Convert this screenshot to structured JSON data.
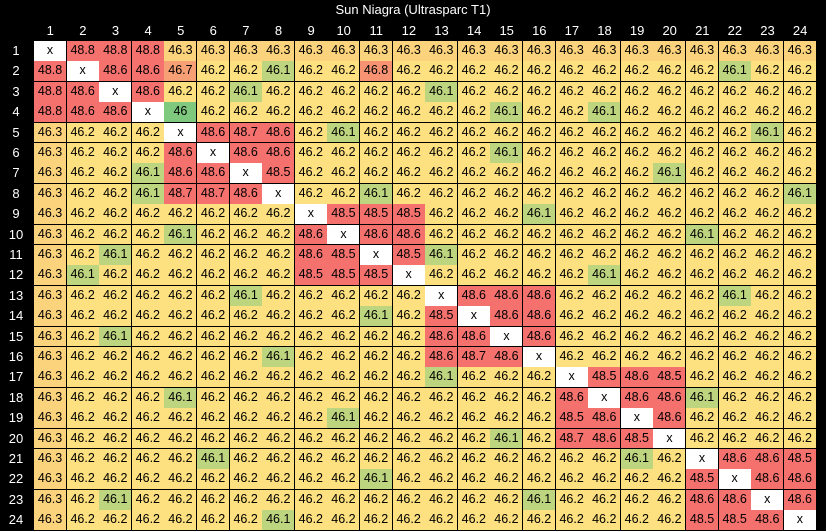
{
  "chart_data": {
    "type": "heatmap",
    "title": "Sun Niagra (Ultrasparc T1)",
    "x_labels": [
      "1",
      "2",
      "3",
      "4",
      "5",
      "6",
      "7",
      "8",
      "9",
      "10",
      "11",
      "12",
      "13",
      "14",
      "15",
      "16",
      "17",
      "18",
      "19",
      "20",
      "21",
      "22",
      "23",
      "24"
    ],
    "y_labels": [
      "1",
      "2",
      "3",
      "4",
      "5",
      "6",
      "7",
      "8",
      "9",
      "10",
      "11",
      "12",
      "13",
      "14",
      "15",
      "16",
      "17",
      "18",
      "19",
      "20",
      "21",
      "22",
      "23",
      "24"
    ],
    "diagonal_label": "x",
    "colors": {
      "low": "#7fc97f",
      "mid": "#fde07f",
      "high": "#f4716e",
      "diagonal": "#ffffff"
    },
    "values": [
      [
        null,
        48.8,
        48.8,
        48.8,
        46.3,
        46.3,
        46.3,
        46.3,
        46.3,
        46.3,
        46.3,
        46.3,
        46.3,
        46.3,
        46.3,
        46.3,
        46.3,
        46.3,
        46.3,
        46.3,
        46.3,
        46.3,
        46.3,
        46.3
      ],
      [
        48.8,
        null,
        48.6,
        48.6,
        46.7,
        46.2,
        46.2,
        46.1,
        46.2,
        46.2,
        46.8,
        46.2,
        46.2,
        46.2,
        46.2,
        46.2,
        46.2,
        46.2,
        46.2,
        46.2,
        46.2,
        46.1,
        46.2,
        46.2
      ],
      [
        48.8,
        48.6,
        null,
        48.6,
        46.2,
        46.2,
        46.1,
        46.2,
        46.2,
        46.2,
        46.2,
        46.2,
        46.1,
        46.2,
        46.2,
        46.2,
        46.2,
        46.2,
        46.2,
        46.2,
        46.2,
        46.2,
        46.2,
        46.2
      ],
      [
        48.8,
        48.6,
        48.6,
        null,
        46,
        46.2,
        46.2,
        46.2,
        46.2,
        46.2,
        46.2,
        46.2,
        46.2,
        46.2,
        46.1,
        46.2,
        46.2,
        46.1,
        46.2,
        46.2,
        46.2,
        46.2,
        46.2,
        46.2
      ],
      [
        46.3,
        46.2,
        46.2,
        46.2,
        null,
        48.6,
        48.7,
        48.6,
        46.2,
        46.1,
        46.2,
        46.2,
        46.2,
        46.2,
        46.2,
        46.2,
        46.2,
        46.2,
        46.2,
        46.2,
        46.2,
        46.2,
        46.1,
        46.2
      ],
      [
        46.3,
        46.2,
        46.2,
        46.2,
        48.6,
        null,
        48.6,
        48.6,
        46.2,
        46.2,
        46.2,
        46.2,
        46.2,
        46.2,
        46.1,
        46.2,
        46.2,
        46.2,
        46.2,
        46.2,
        46.2,
        46.2,
        46.2,
        46.2
      ],
      [
        46.3,
        46.2,
        46.2,
        46.1,
        48.6,
        48.6,
        null,
        48.5,
        46.2,
        46.2,
        46.2,
        46.2,
        46.2,
        46.2,
        46.2,
        46.2,
        46.2,
        46.2,
        46.2,
        46.1,
        46.2,
        46.2,
        46.2,
        46.2
      ],
      [
        46.3,
        46.2,
        46.2,
        46.1,
        48.7,
        48.7,
        48.6,
        null,
        46.2,
        46.2,
        46.1,
        46.2,
        46.2,
        46.2,
        46.2,
        46.2,
        46.2,
        46.2,
        46.2,
        46.2,
        46.2,
        46.2,
        46.2,
        46.1
      ],
      [
        46.3,
        46.2,
        46.2,
        46.2,
        46.2,
        46.2,
        46.2,
        46.2,
        null,
        48.5,
        48.5,
        48.5,
        46.2,
        46.2,
        46.2,
        46.1,
        46.2,
        46.2,
        46.2,
        46.2,
        46.2,
        46.2,
        46.2,
        46.2
      ],
      [
        46.3,
        46.2,
        46.2,
        46.2,
        46.1,
        46.2,
        46.2,
        46.2,
        48.6,
        null,
        48.6,
        48.6,
        46.2,
        46.2,
        46.2,
        46.2,
        46.2,
        46.2,
        46.2,
        46.2,
        46.1,
        46.2,
        46.2,
        46.2
      ],
      [
        46.3,
        46.2,
        46.1,
        46.2,
        46.2,
        46.2,
        46.2,
        46.2,
        48.6,
        48.5,
        null,
        48.5,
        46.1,
        46.2,
        46.2,
        46.2,
        46.2,
        46.2,
        46.2,
        46.2,
        46.2,
        46.2,
        46.2,
        46.2
      ],
      [
        46.3,
        46.1,
        46.2,
        46.2,
        46.2,
        46.2,
        46.2,
        46.2,
        48.5,
        48.5,
        48.5,
        null,
        46.2,
        46.2,
        46.2,
        46.2,
        46.2,
        46.1,
        46.2,
        46.2,
        46.2,
        46.2,
        46.2,
        46.2
      ],
      [
        46.3,
        46.2,
        46.2,
        46.2,
        46.2,
        46.2,
        46.1,
        46.2,
        46.2,
        46.2,
        46.2,
        46.2,
        null,
        48.6,
        48.6,
        48.6,
        46.2,
        46.2,
        46.2,
        46.2,
        46.2,
        46.1,
        46.2,
        46.2
      ],
      [
        46.3,
        46.2,
        46.2,
        46.2,
        46.2,
        46.2,
        46.2,
        46.2,
        46.2,
        46.2,
        46.1,
        46.2,
        48.5,
        null,
        48.6,
        48.6,
        46.2,
        46.2,
        46.2,
        46.2,
        46.2,
        46.2,
        46.2,
        46.2
      ],
      [
        46.3,
        46.2,
        46.1,
        46.2,
        46.2,
        46.2,
        46.2,
        46.2,
        46.2,
        46.2,
        46.2,
        46.2,
        48.6,
        48.6,
        null,
        48.6,
        46.2,
        46.2,
        46.2,
        46.2,
        46.2,
        46.2,
        46.2,
        46.2
      ],
      [
        46.3,
        46.2,
        46.2,
        46.2,
        46.2,
        46.2,
        46.2,
        46.1,
        46.2,
        46.2,
        46.2,
        46.2,
        48.6,
        48.7,
        48.6,
        null,
        46.2,
        46.2,
        46.2,
        46.2,
        46.2,
        46.2,
        46.2,
        46.2
      ],
      [
        46.3,
        46.2,
        46.2,
        46.2,
        46.2,
        46.2,
        46.2,
        46.2,
        46.2,
        46.2,
        46.2,
        46.2,
        46.1,
        46.2,
        46.2,
        46.2,
        null,
        48.5,
        48.6,
        48.5,
        46.2,
        46.2,
        46.2,
        46.2
      ],
      [
        46.3,
        46.2,
        46.2,
        46.2,
        46.1,
        46.2,
        46.2,
        46.2,
        46.2,
        46.2,
        46.2,
        46.2,
        46.2,
        46.2,
        46.2,
        46.2,
        48.6,
        null,
        48.6,
        48.6,
        46.1,
        46.2,
        46.2,
        46.2
      ],
      [
        46.3,
        46.2,
        46.2,
        46.2,
        46.2,
        46.2,
        46.2,
        46.2,
        46.2,
        46.1,
        46.2,
        46.2,
        46.2,
        46.2,
        46.2,
        46.2,
        48.5,
        48.6,
        null,
        48.6,
        46.2,
        46.2,
        46.2,
        46.2
      ],
      [
        46.3,
        46.2,
        46.2,
        46.2,
        46.2,
        46.2,
        46.2,
        46.2,
        46.2,
        46.2,
        46.2,
        46.2,
        46.2,
        46.2,
        46.1,
        46.2,
        48.7,
        48.6,
        48.5,
        null,
        46.2,
        46.2,
        46.2,
        46.2
      ],
      [
        46.3,
        46.2,
        46.2,
        46.2,
        46.2,
        46.1,
        46.2,
        46.2,
        46.2,
        46.2,
        46.2,
        46.2,
        46.2,
        46.2,
        46.2,
        46.2,
        46.2,
        46.2,
        46.1,
        46.2,
        null,
        48.6,
        48.6,
        48.5
      ],
      [
        46.3,
        46.2,
        46.2,
        46.2,
        46.2,
        46.2,
        46.2,
        46.2,
        46.2,
        46.2,
        46.1,
        46.2,
        46.2,
        46.2,
        46.2,
        46.2,
        46.2,
        46.2,
        46.2,
        46.2,
        48.5,
        null,
        48.6,
        48.6
      ],
      [
        46.3,
        46.2,
        46.1,
        46.2,
        46.2,
        46.2,
        46.2,
        46.2,
        46.2,
        46.2,
        46.2,
        46.2,
        46.2,
        46.2,
        46.2,
        46.1,
        46.2,
        46.2,
        46.2,
        46.2,
        48.6,
        48.6,
        null,
        48.6
      ],
      [
        46.3,
        46.2,
        46.2,
        46.2,
        46.2,
        46.2,
        46.2,
        46.1,
        46.2,
        46.2,
        46.2,
        46.2,
        46.2,
        46.2,
        46.2,
        46.2,
        46.2,
        46.2,
        46.2,
        46.2,
        48.5,
        48.5,
        48.6,
        null
      ]
    ]
  }
}
